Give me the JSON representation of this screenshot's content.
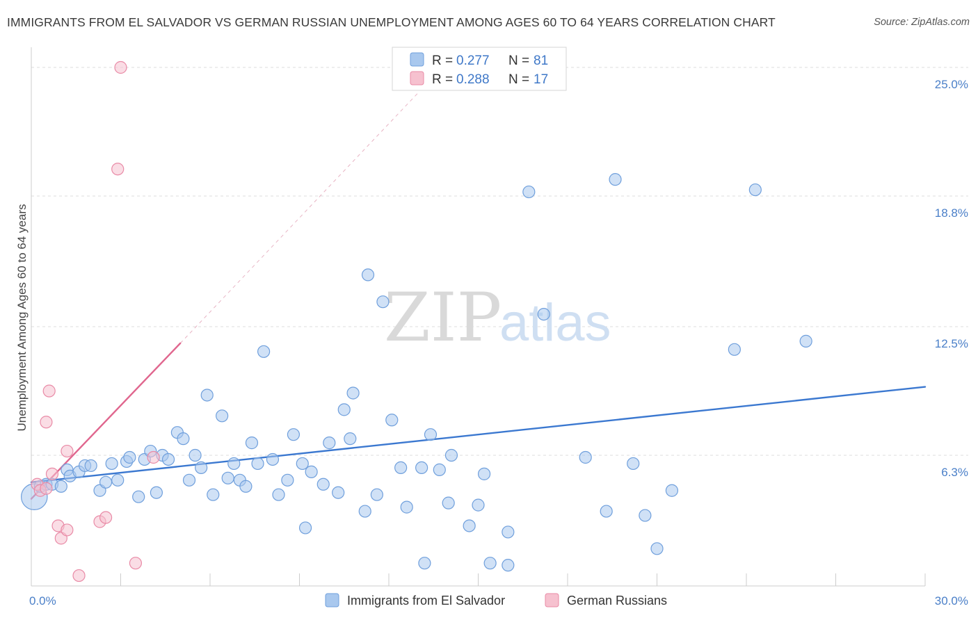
{
  "title": "IMMIGRANTS FROM EL SALVADOR VS GERMAN RUSSIAN UNEMPLOYMENT AMONG AGES 60 TO 64 YEARS CORRELATION CHART",
  "source": "Source: ZipAtlas.com",
  "watermark": {
    "zip": "ZIP",
    "atlas": "atlas"
  },
  "colors": {
    "blue_fill": "#a9c8ee",
    "blue_stroke": "#6f9fdc",
    "blue_line": "#3b78d0",
    "pink_fill": "#f6c1cf",
    "pink_stroke": "#e98aa6",
    "pink_line": "#e0668e",
    "grid": "#dddddd",
    "tick_text": "#4a7fc8"
  },
  "legend": {
    "rows": [
      {
        "r_label": "R = ",
        "r_value": "0.277",
        "n_label": "N = ",
        "n_value": "81",
        "series": "blue"
      },
      {
        "r_label": "R = ",
        "r_value": "0.288",
        "n_label": "N = ",
        "n_value": "17",
        "series": "pink"
      }
    ]
  },
  "chart_data": {
    "type": "scatter",
    "title": "IMMIGRANTS FROM EL SALVADOR VS GERMAN RUSSIAN UNEMPLOYMENT AMONG AGES 60 TO 64 YEARS CORRELATION CHART",
    "xlabel": "",
    "ylabel": "Unemployment Among Ages 60 to 64 years",
    "xlim": [
      0,
      30
    ],
    "ylim": [
      0,
      25
    ],
    "x_tick_labels": [
      {
        "value": 0,
        "label": "0.0%"
      },
      {
        "value": 30,
        "label": "30.0%"
      }
    ],
    "y_tick_labels": [
      {
        "value": 6.3,
        "label": "6.3%"
      },
      {
        "value": 12.5,
        "label": "12.5%"
      },
      {
        "value": 18.8,
        "label": "18.8%"
      },
      {
        "value": 25.0,
        "label": "25.0%"
      }
    ],
    "x_ticks": [
      0,
      3,
      6,
      9,
      12,
      15,
      18,
      21,
      24,
      27,
      30
    ],
    "grid": true,
    "series": [
      {
        "name": "Immigrants from El Salvador",
        "color": "blue",
        "trend": {
          "x0": 0,
          "y0": 5.0,
          "x1": 30,
          "y1": 9.6,
          "dashed_extension": false
        },
        "points": [
          [
            0.1,
            4.3,
            2.2
          ],
          [
            0.3,
            4.8,
            1
          ],
          [
            0.5,
            4.9,
            1
          ],
          [
            0.7,
            4.9,
            1
          ],
          [
            1.0,
            4.8,
            1
          ],
          [
            1.2,
            5.6,
            1
          ],
          [
            1.3,
            5.3,
            1
          ],
          [
            1.6,
            5.5,
            1
          ],
          [
            1.8,
            5.8,
            1
          ],
          [
            2.0,
            5.8,
            1
          ],
          [
            2.3,
            4.6,
            1
          ],
          [
            2.5,
            5.0,
            1
          ],
          [
            2.7,
            5.9,
            1
          ],
          [
            2.9,
            5.1,
            1
          ],
          [
            3.2,
            6.0,
            1
          ],
          [
            3.3,
            6.2,
            1
          ],
          [
            3.6,
            4.3,
            1
          ],
          [
            3.8,
            6.1,
            1
          ],
          [
            4.0,
            6.5,
            1
          ],
          [
            4.2,
            4.5,
            1
          ],
          [
            4.4,
            6.3,
            1
          ],
          [
            4.6,
            6.1,
            1
          ],
          [
            4.9,
            7.4,
            1
          ],
          [
            5.1,
            7.1,
            1
          ],
          [
            5.3,
            5.1,
            1
          ],
          [
            5.5,
            6.3,
            1
          ],
          [
            5.7,
            5.7,
            1
          ],
          [
            5.9,
            9.2,
            1
          ],
          [
            6.1,
            4.4,
            1
          ],
          [
            6.4,
            8.2,
            1
          ],
          [
            6.6,
            5.2,
            1
          ],
          [
            6.8,
            5.9,
            1
          ],
          [
            7.0,
            5.1,
            1
          ],
          [
            7.2,
            4.8,
            1
          ],
          [
            7.4,
            6.9,
            1
          ],
          [
            7.6,
            5.9,
            1
          ],
          [
            7.8,
            11.3,
            1
          ],
          [
            8.1,
            6.1,
            1
          ],
          [
            8.3,
            4.4,
            1
          ],
          [
            8.6,
            5.1,
            1
          ],
          [
            8.8,
            7.3,
            1
          ],
          [
            9.1,
            5.9,
            1
          ],
          [
            9.2,
            2.8,
            1
          ],
          [
            9.4,
            5.5,
            1
          ],
          [
            9.8,
            4.9,
            1
          ],
          [
            10.0,
            6.9,
            1
          ],
          [
            10.3,
            4.5,
            1
          ],
          [
            10.5,
            8.5,
            1
          ],
          [
            10.7,
            7.1,
            1
          ],
          [
            10.8,
            9.3,
            1
          ],
          [
            11.2,
            3.6,
            1
          ],
          [
            11.3,
            15.0,
            1
          ],
          [
            11.6,
            4.4,
            1
          ],
          [
            11.8,
            13.7,
            1
          ],
          [
            12.1,
            8.0,
            1
          ],
          [
            12.4,
            5.7,
            1
          ],
          [
            12.6,
            3.8,
            1
          ],
          [
            13.1,
            5.7,
            1
          ],
          [
            13.2,
            1.1,
            1
          ],
          [
            13.4,
            7.3,
            1
          ],
          [
            13.7,
            5.6,
            1
          ],
          [
            14.0,
            4.0,
            1
          ],
          [
            14.1,
            6.3,
            1
          ],
          [
            14.7,
            2.9,
            1
          ],
          [
            15.0,
            3.9,
            1
          ],
          [
            15.2,
            5.4,
            1
          ],
          [
            15.4,
            1.1,
            1
          ],
          [
            16.0,
            2.6,
            1
          ],
          [
            16.0,
            1.0,
            1
          ],
          [
            16.7,
            19.0,
            1
          ],
          [
            17.2,
            13.1,
            1
          ],
          [
            18.6,
            6.2,
            1
          ],
          [
            19.3,
            3.6,
            1
          ],
          [
            19.6,
            19.6,
            1
          ],
          [
            20.2,
            5.9,
            1
          ],
          [
            20.6,
            3.4,
            1
          ],
          [
            21.0,
            1.8,
            1
          ],
          [
            21.5,
            4.6,
            1
          ],
          [
            23.6,
            11.4,
            1
          ],
          [
            24.3,
            19.1,
            1
          ],
          [
            26.0,
            11.8,
            1
          ]
        ]
      },
      {
        "name": "German Russians",
        "color": "pink",
        "trend": {
          "x0": 0,
          "y0": 4.2,
          "x1": 5.0,
          "y1": 11.7,
          "dashed_extension": true,
          "dash_to": {
            "x": 13.0,
            "y": 23.8
          }
        },
        "points": [
          [
            0.2,
            4.9,
            1
          ],
          [
            0.3,
            4.6,
            1
          ],
          [
            0.5,
            4.7,
            1
          ],
          [
            0.5,
            7.9,
            1
          ],
          [
            0.6,
            9.4,
            1
          ],
          [
            0.7,
            5.4,
            1
          ],
          [
            0.9,
            2.9,
            1
          ],
          [
            1.0,
            2.3,
            1
          ],
          [
            1.2,
            2.7,
            1
          ],
          [
            1.2,
            6.5,
            1
          ],
          [
            1.6,
            0.5,
            1
          ],
          [
            2.3,
            3.1,
            1
          ],
          [
            2.5,
            3.3,
            1
          ],
          [
            2.9,
            20.1,
            1
          ],
          [
            3.0,
            25.0,
            1
          ],
          [
            3.5,
            1.1,
            1
          ],
          [
            4.1,
            6.2,
            1
          ]
        ]
      }
    ]
  }
}
